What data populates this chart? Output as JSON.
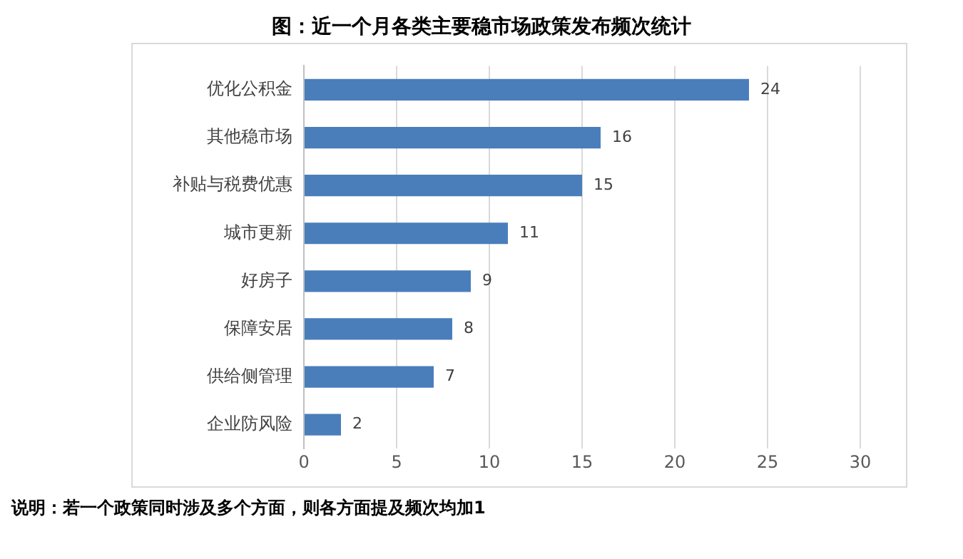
{
  "chart_data": {
    "type": "bar",
    "orientation": "horizontal",
    "title": "图：近一个月各类主要稳市场政策发布频次统计",
    "categories": [
      "优化公积金",
      "其他稳市场",
      "补贴与税费优惠",
      "城市更新",
      "好房子",
      "保障安居",
      "供给侧管理",
      "企业防风险"
    ],
    "values": [
      24,
      16,
      15,
      11,
      9,
      8,
      7,
      2
    ],
    "color": "#4a7ebb",
    "xlim": [
      0,
      30
    ],
    "xticks": [
      0,
      5,
      10,
      15,
      20,
      25,
      30
    ],
    "grid": "x",
    "data_labels": true,
    "annotations": [
      "说明：若一个政策同时涉及多个方面，则各方面提及频次均加1"
    ]
  }
}
